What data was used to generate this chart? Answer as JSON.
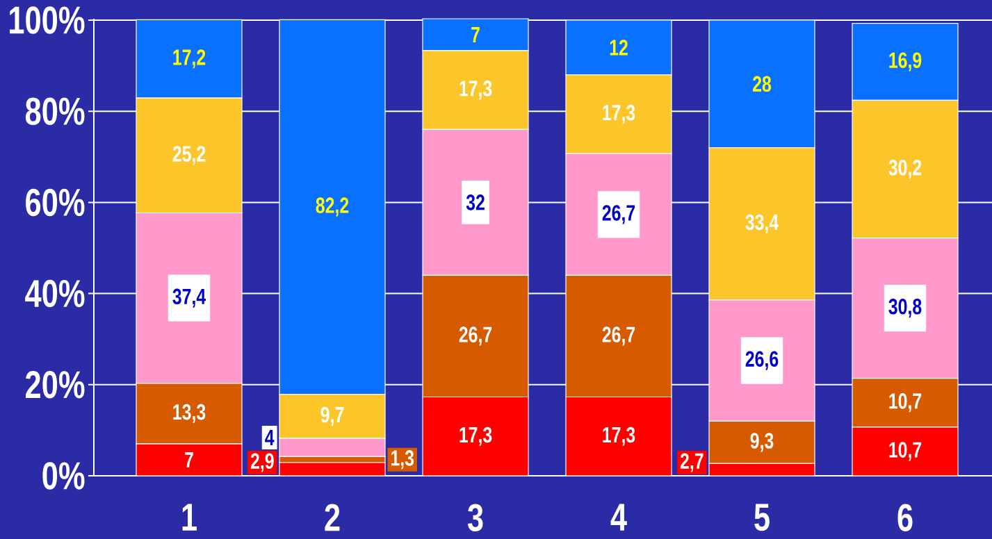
{
  "chart_data": {
    "type": "bar",
    "stacked": true,
    "categories": [
      "1",
      "2",
      "3",
      "4",
      "5",
      "6"
    ],
    "series": [
      {
        "color": "#ff0000",
        "values": [
          7,
          2.9,
          17.3,
          17.3,
          2.7,
          10.7
        ],
        "value_labels": [
          "7",
          "2,9",
          "17,3",
          "17,3",
          "2,7",
          "10,7"
        ]
      },
      {
        "color": "#d65a00",
        "values": [
          13.3,
          1.3,
          26.7,
          26.7,
          9.3,
          10.7
        ],
        "value_labels": [
          "13,3",
          "1,3",
          "26,7",
          "26,7",
          "9,3",
          "10,7"
        ]
      },
      {
        "color": "#ff99cc",
        "values": [
          37.4,
          4,
          32,
          26.7,
          26.6,
          30.8
        ],
        "value_labels": [
          "37,4",
          "4",
          "32",
          "26,7",
          "26,6",
          "30,8"
        ]
      },
      {
        "color": "#fcc52a",
        "values": [
          25.2,
          9.7,
          17.3,
          17.3,
          33.4,
          30.2
        ],
        "value_labels": [
          "25,2",
          "9,7",
          "17,3",
          "17,3",
          "33,4",
          "30,2"
        ]
      },
      {
        "color": "#0a70ff",
        "values": [
          17.2,
          82.2,
          7,
          12,
          28,
          16.9
        ],
        "value_labels": [
          "17,2",
          "82,2",
          "7",
          "12",
          "28",
          "16,9"
        ]
      }
    ],
    "ylim": [
      0,
      100.3
    ],
    "yticks": [
      {
        "value": 0,
        "label": "0%"
      },
      {
        "value": 20,
        "label": "20%"
      },
      {
        "value": 40,
        "label": "40%"
      },
      {
        "value": 60,
        "label": "60%"
      },
      {
        "value": 80,
        "label": "80%"
      },
      {
        "value": 100,
        "label": "100%"
      }
    ],
    "grid": "y"
  }
}
